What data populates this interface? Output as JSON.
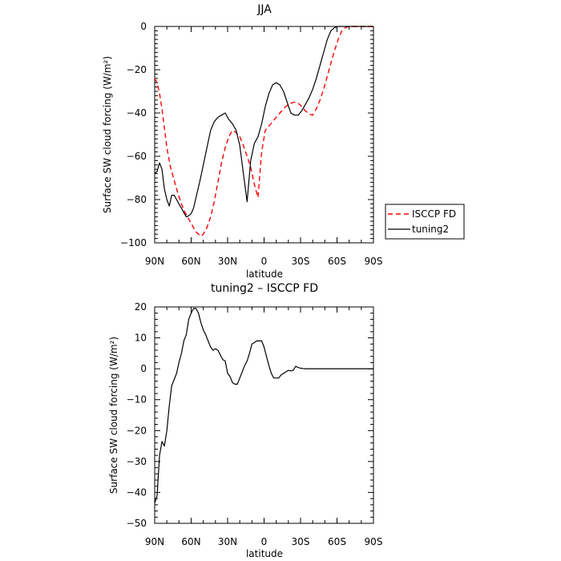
{
  "chart_data": [
    {
      "type": "line",
      "title": "JJA",
      "xlabel": "latitude",
      "ylabel": "Surface SW cloud forcing (W/m²)",
      "xlim": [
        90,
        -90
      ],
      "ylim": [
        -100,
        0
      ],
      "xticks": [
        {
          "value": 90,
          "label": "90N"
        },
        {
          "value": 60,
          "label": "60N"
        },
        {
          "value": 30,
          "label": "30N"
        },
        {
          "value": 0,
          "label": "0"
        },
        {
          "value": -30,
          "label": "30S"
        },
        {
          "value": -60,
          "label": "60S"
        },
        {
          "value": -90,
          "label": "90S"
        }
      ],
      "yticks": [
        0,
        -20,
        -40,
        -60,
        -80,
        -100
      ],
      "legend": "right-outside",
      "series": [
        {
          "name": "ISCCP FD",
          "color": "#ff0000",
          "dash": "dashed",
          "x": [
            90,
            88,
            86,
            84,
            82,
            80,
            77,
            74,
            71,
            68,
            65,
            62,
            60,
            58,
            56,
            54,
            52,
            50,
            47,
            44,
            41,
            38,
            35,
            32,
            29,
            26,
            23,
            20,
            17,
            14,
            11,
            8,
            5,
            2,
            -1,
            -4,
            -7,
            -10,
            -13,
            -16,
            -19,
            -22,
            -25,
            -28,
            -31,
            -34,
            -37,
            -40,
            -43,
            -46,
            -49,
            -52,
            -55,
            -58,
            -61,
            -64,
            -67,
            -70,
            -75,
            -80,
            -85,
            -90
          ],
          "y": [
            -24,
            -26,
            -31,
            -38,
            -47,
            -56,
            -65,
            -71,
            -77,
            -82,
            -86,
            -89,
            -91,
            -93,
            -95,
            -96,
            -97,
            -96,
            -93,
            -88,
            -81,
            -72,
            -63,
            -56,
            -51,
            -48,
            -49,
            -51,
            -55,
            -60,
            -65,
            -73,
            -79,
            -58,
            -48,
            -46,
            -44,
            -42,
            -40,
            -38,
            -36.5,
            -35.5,
            -35,
            -35.5,
            -37,
            -39,
            -40.5,
            -41,
            -38,
            -34,
            -29,
            -23,
            -17,
            -11,
            -6,
            -2,
            -0.5,
            0,
            0,
            0,
            0,
            0
          ]
        },
        {
          "name": "tuning2",
          "color": "#000000",
          "dash": "solid",
          "x": [
            90,
            88,
            86,
            84,
            82,
            80,
            78,
            76,
            74,
            72,
            70,
            68,
            66,
            64,
            62,
            60,
            58,
            56,
            53,
            50,
            47,
            44,
            41,
            38,
            35,
            32,
            29,
            26,
            23,
            20,
            17,
            14,
            11,
            8,
            5,
            2,
            -1,
            -4,
            -7,
            -10,
            -13,
            -16,
            -19,
            -22,
            -25,
            -28,
            -31,
            -34,
            -37,
            -40,
            -43,
            -46,
            -49,
            -52,
            -55,
            -58,
            -61,
            -64,
            -67,
            -70,
            -75,
            -80,
            -85,
            -90
          ],
          "y": [
            -68,
            -67,
            -63,
            -66,
            -75,
            -80,
            -83,
            -78,
            -78,
            -80,
            -82,
            -84,
            -86,
            -88,
            -87.5,
            -86.5,
            -84,
            -79,
            -72,
            -64,
            -56,
            -48,
            -44,
            -42,
            -41,
            -40,
            -43,
            -45,
            -48,
            -55,
            -68,
            -81,
            -62,
            -54,
            -51,
            -45,
            -37,
            -31,
            -27,
            -26,
            -27,
            -30,
            -35,
            -40,
            -41,
            -41,
            -39,
            -36,
            -33,
            -29,
            -24,
            -18,
            -12,
            -6,
            -2,
            -0.5,
            0,
            0,
            0,
            0,
            0,
            0,
            0,
            0
          ]
        }
      ]
    },
    {
      "type": "line",
      "title": "tuning2 – ISCCP FD",
      "xlabel": "latitude",
      "ylabel": "Surface SW cloud forcing (W/m²)",
      "xlim": [
        90,
        -90
      ],
      "ylim": [
        -50,
        20
      ],
      "xticks": [
        {
          "value": 90,
          "label": "90N"
        },
        {
          "value": 60,
          "label": "60N"
        },
        {
          "value": 30,
          "label": "30N"
        },
        {
          "value": 0,
          "label": "0"
        },
        {
          "value": -30,
          "label": "30S"
        },
        {
          "value": -60,
          "label": "60S"
        },
        {
          "value": -90,
          "label": "90S"
        }
      ],
      "yticks": [
        20,
        10,
        0,
        -10,
        -20,
        -30,
        -40,
        -50
      ],
      "series": [
        {
          "name": "",
          "color": "#000000",
          "dash": "solid",
          "x": [
            90,
            88,
            86,
            84,
            82,
            80,
            78,
            76,
            74,
            72,
            70,
            68,
            66,
            64,
            62,
            60,
            58,
            56,
            54,
            52,
            50,
            48,
            46,
            44,
            42,
            40,
            38,
            36,
            34,
            32,
            30,
            28,
            26,
            24,
            22,
            20,
            18,
            16,
            14,
            12,
            10,
            8,
            6,
            4,
            2,
            0,
            -2,
            -4,
            -6,
            -8,
            -10,
            -12,
            -14,
            -16,
            -18,
            -20,
            -22,
            -24,
            -26,
            -28,
            -30,
            -32,
            -34,
            -36,
            -38,
            -40,
            -42,
            -44,
            -46,
            -48,
            -50,
            -52,
            -54,
            -56,
            -58,
            -60,
            -62,
            -64,
            -66,
            -68,
            -70,
            -75,
            -80,
            -85,
            -90
          ],
          "y": [
            -43.5,
            -41,
            -28,
            -23.5,
            -25,
            -20,
            -12,
            -5.5,
            -3.5,
            -1.5,
            2,
            5,
            9,
            11,
            16,
            18,
            19.5,
            19.5,
            18,
            15,
            12.5,
            11,
            9,
            7,
            6,
            6.5,
            6,
            4.5,
            3,
            2.5,
            -1.5,
            -2.5,
            -4.5,
            -5,
            -5,
            -3,
            -1,
            1,
            2.5,
            5,
            8,
            8.5,
            9,
            9,
            9,
            7,
            4,
            1,
            -1.5,
            -3,
            -3,
            -3,
            -2,
            -1.5,
            -1,
            -0.5,
            -0.7,
            -0.5,
            0.8,
            0.4,
            0.2,
            0.1,
            0,
            0,
            0,
            0,
            0,
            0,
            0,
            0,
            0,
            0,
            0,
            0,
            0,
            0,
            0,
            0,
            0,
            0,
            0,
            0,
            0,
            0,
            0
          ]
        }
      ]
    }
  ]
}
